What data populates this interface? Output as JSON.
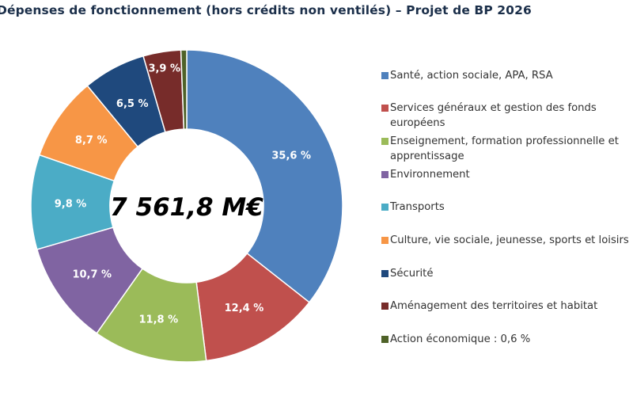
{
  "chart_data": {
    "type": "pie",
    "variant": "donut",
    "title": "Dépenses de fonctionnement (hors crédits non ventilés) – Projet de BP 2026",
    "center_label": "7 561,8 M€",
    "unit": "%",
    "legend_position": "right",
    "slices": [
      {
        "label": "Santé, action sociale, APA, RSA",
        "label_lines": [
          "Santé, action sociale, APA, RSA"
        ],
        "value": 35.6,
        "data_label": "35,6 %",
        "color": "#4F81BD"
      },
      {
        "label": "Services généraux et gestion des fonds européens",
        "label_lines": [
          "Services généraux et gestion des fonds",
          "européens"
        ],
        "value": 12.4,
        "data_label": "12,4 %",
        "color": "#C0504D"
      },
      {
        "label": "Enseignement, formation professionnelle et apprentissage",
        "label_lines": [
          "Enseignement, formation professionnelle et",
          "apprentissage"
        ],
        "value": 11.8,
        "data_label": "11,8 %",
        "color": "#9BBB59"
      },
      {
        "label": "Environnement",
        "label_lines": [
          "Environnement"
        ],
        "value": 10.7,
        "data_label": "10,7 %",
        "color": "#8064A2"
      },
      {
        "label": "Transports",
        "label_lines": [
          "Transports"
        ],
        "value": 9.8,
        "data_label": "9,8 %",
        "color": "#4BACC6"
      },
      {
        "label": "Culture, vie sociale, jeunesse, sports et loisirs",
        "label_lines": [
          "Culture, vie sociale, jeunesse, sports et loisirs"
        ],
        "value": 8.7,
        "data_label": "8,7 %",
        "color": "#F79646"
      },
      {
        "label": "Sécurité",
        "label_lines": [
          "Sécurité"
        ],
        "value": 6.5,
        "data_label": "6,5 %",
        "color": "#1F497D"
      },
      {
        "label": "Aménagement des territoires et habitat",
        "label_lines": [
          "Aménagement des territoires et habitat"
        ],
        "value": 3.9,
        "data_label": "3,9 %",
        "color": "#772C2A"
      },
      {
        "label": "Action économique : 0,6 %",
        "label_lines": [
          "Action économique : 0,6 %"
        ],
        "value": 0.6,
        "data_label": "",
        "color": "#4F6228"
      }
    ]
  }
}
